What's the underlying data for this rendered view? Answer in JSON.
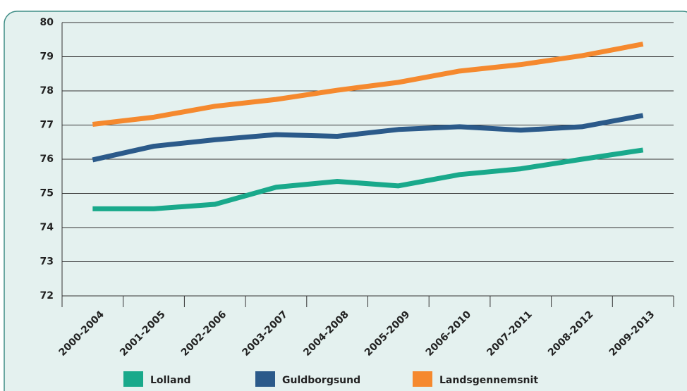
{
  "chart_data": {
    "type": "line",
    "categories": [
      "2000-2004",
      "2001-2005",
      "2002-2006",
      "2003-2007",
      "2004-2008",
      "2005-2009",
      "2006-2010",
      "2007-2011",
      "2008-2012",
      "2009-2013"
    ],
    "series": [
      {
        "name": "Lolland",
        "color": "#19a98b",
        "values": [
          74.55,
          74.55,
          74.68,
          75.18,
          75.35,
          75.22,
          75.55,
          75.72,
          76.0,
          76.27
        ]
      },
      {
        "name": "Guldborgsund",
        "color": "#2b5a8a",
        "values": [
          75.98,
          76.38,
          76.57,
          76.72,
          76.67,
          76.87,
          76.95,
          76.85,
          76.95,
          77.28
        ]
      },
      {
        "name": "Landsgennemsnit",
        "color": "#f5892e",
        "values": [
          77.02,
          77.23,
          77.55,
          77.75,
          78.02,
          78.25,
          78.58,
          78.77,
          79.03,
          79.37
        ]
      }
    ],
    "ylim": [
      72,
      80
    ],
    "yticks": [
      72,
      73,
      74,
      75,
      76,
      77,
      78,
      79,
      80
    ],
    "grid": true
  }
}
